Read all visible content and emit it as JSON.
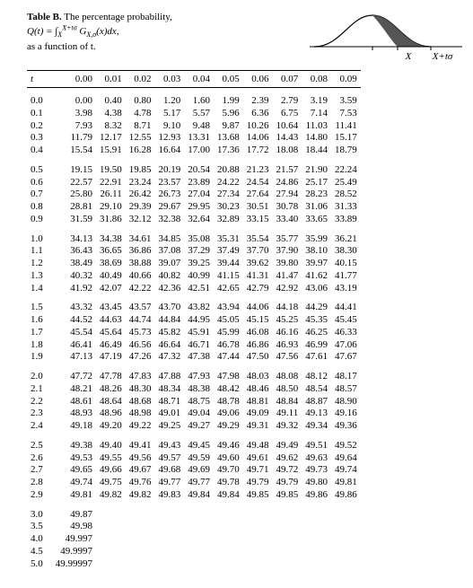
{
  "title_prefix": "Table B.",
  "title_rest": " The percentage probability,",
  "formula_line": "Q(t) = ∫ G (x)dx,",
  "formula_sub_lower": "X",
  "formula_sub_upper": "X+tσ",
  "formula_Gsub": "X,σ",
  "subtitle": "as a function of t.",
  "diagram": {
    "x_label": "X",
    "xt_label": "X+tσ",
    "curve_stroke": "#000000",
    "fill_color": "#555555",
    "axis_color": "#000000",
    "bg": "#ffffff"
  },
  "columns": [
    "t",
    "0.00",
    "0.01",
    "0.02",
    "0.03",
    "0.04",
    "0.05",
    "0.06",
    "0.07",
    "0.08",
    "0.09"
  ],
  "groups": [
    {
      "rows": [
        [
          "0.0",
          "0.00",
          "0.40",
          "0.80",
          "1.20",
          "1.60",
          "1.99",
          "2.39",
          "2.79",
          "3.19",
          "3.59"
        ],
        [
          "0.1",
          "3.98",
          "4.38",
          "4.78",
          "5.17",
          "5.57",
          "5.96",
          "6.36",
          "6.75",
          "7.14",
          "7.53"
        ],
        [
          "0.2",
          "7.93",
          "8.32",
          "8.71",
          "9.10",
          "9.48",
          "9.87",
          "10.26",
          "10.64",
          "11.03",
          "11.41"
        ],
        [
          "0.3",
          "11.79",
          "12.17",
          "12.55",
          "12.93",
          "13.31",
          "13.68",
          "14.06",
          "14.43",
          "14.80",
          "15.17"
        ],
        [
          "0.4",
          "15.54",
          "15.91",
          "16.28",
          "16.64",
          "17.00",
          "17.36",
          "17.72",
          "18.08",
          "18.44",
          "18.79"
        ]
      ]
    },
    {
      "rows": [
        [
          "0.5",
          "19.15",
          "19.50",
          "19.85",
          "20.19",
          "20.54",
          "20.88",
          "21.23",
          "21.57",
          "21.90",
          "22.24"
        ],
        [
          "0.6",
          "22.57",
          "22.91",
          "23.24",
          "23.57",
          "23.89",
          "24.22",
          "24.54",
          "24.86",
          "25.17",
          "25.49"
        ],
        [
          "0.7",
          "25.80",
          "26.11",
          "26.42",
          "26.73",
          "27.04",
          "27.34",
          "27.64",
          "27.94",
          "28.23",
          "28.52"
        ],
        [
          "0.8",
          "28.81",
          "29.10",
          "29.39",
          "29.67",
          "29.95",
          "30.23",
          "30.51",
          "30.78",
          "31.06",
          "31.33"
        ],
        [
          "0.9",
          "31.59",
          "31.86",
          "32.12",
          "32.38",
          "32.64",
          "32.89",
          "33.15",
          "33.40",
          "33.65",
          "33.89"
        ]
      ]
    },
    {
      "rows": [
        [
          "1.0",
          "34.13",
          "34.38",
          "34.61",
          "34.85",
          "35.08",
          "35.31",
          "35.54",
          "35.77",
          "35.99",
          "36.21"
        ],
        [
          "1.1",
          "36.43",
          "36.65",
          "36.86",
          "37.08",
          "37.29",
          "37.49",
          "37.70",
          "37.90",
          "38.10",
          "38.30"
        ],
        [
          "1.2",
          "38.49",
          "38.69",
          "38.88",
          "39.07",
          "39.25",
          "39.44",
          "39.62",
          "39.80",
          "39.97",
          "40.15"
        ],
        [
          "1.3",
          "40.32",
          "40.49",
          "40.66",
          "40.82",
          "40.99",
          "41.15",
          "41.31",
          "41.47",
          "41.62",
          "41.77"
        ],
        [
          "1.4",
          "41.92",
          "42.07",
          "42.22",
          "42.36",
          "42.51",
          "42.65",
          "42.79",
          "42.92",
          "43.06",
          "43.19"
        ]
      ]
    },
    {
      "rows": [
        [
          "1.5",
          "43.32",
          "43.45",
          "43.57",
          "43.70",
          "43.82",
          "43.94",
          "44.06",
          "44.18",
          "44.29",
          "44.41"
        ],
        [
          "1.6",
          "44.52",
          "44.63",
          "44.74",
          "44.84",
          "44.95",
          "45.05",
          "45.15",
          "45.25",
          "45.35",
          "45.45"
        ],
        [
          "1.7",
          "45.54",
          "45.64",
          "45.73",
          "45.82",
          "45.91",
          "45.99",
          "46.08",
          "46.16",
          "46.25",
          "46.33"
        ],
        [
          "1.8",
          "46.41",
          "46.49",
          "46.56",
          "46.64",
          "46.71",
          "46.78",
          "46.86",
          "46.93",
          "46.99",
          "47.06"
        ],
        [
          "1.9",
          "47.13",
          "47.19",
          "47.26",
          "47.32",
          "47.38",
          "47.44",
          "47.50",
          "47.56",
          "47.61",
          "47.67"
        ]
      ]
    },
    {
      "rows": [
        [
          "2.0",
          "47.72",
          "47.78",
          "47.83",
          "47.88",
          "47.93",
          "47.98",
          "48.03",
          "48.08",
          "48.12",
          "48.17"
        ],
        [
          "2.1",
          "48.21",
          "48.26",
          "48.30",
          "48.34",
          "48.38",
          "48.42",
          "48.46",
          "48.50",
          "48.54",
          "48.57"
        ],
        [
          "2.2",
          "48.61",
          "48.64",
          "48.68",
          "48.71",
          "48.75",
          "48.78",
          "48.81",
          "48.84",
          "48.87",
          "48.90"
        ],
        [
          "2.3",
          "48.93",
          "48.96",
          "48.98",
          "49.01",
          "49.04",
          "49.06",
          "49.09",
          "49.11",
          "49.13",
          "49.16"
        ],
        [
          "2.4",
          "49.18",
          "49.20",
          "49.22",
          "49.25",
          "49.27",
          "49.29",
          "49.31",
          "49.32",
          "49.34",
          "49.36"
        ]
      ]
    },
    {
      "rows": [
        [
          "2.5",
          "49.38",
          "49.40",
          "49.41",
          "49.43",
          "49.45",
          "49.46",
          "49.48",
          "49.49",
          "49.51",
          "49.52"
        ],
        [
          "2.6",
          "49.53",
          "49.55",
          "49.56",
          "49.57",
          "49.59",
          "49.60",
          "49.61",
          "49.62",
          "49.63",
          "49.64"
        ],
        [
          "2.7",
          "49.65",
          "49.66",
          "49.67",
          "49.68",
          "49.69",
          "49.70",
          "49.71",
          "49.72",
          "49.73",
          "49.74"
        ],
        [
          "2.8",
          "49.74",
          "49.75",
          "49.76",
          "49.77",
          "49.77",
          "49.78",
          "49.79",
          "49.79",
          "49.80",
          "49.81"
        ],
        [
          "2.9",
          "49.81",
          "49.82",
          "49.82",
          "49.83",
          "49.84",
          "49.84",
          "49.85",
          "49.85",
          "49.86",
          "49.86"
        ]
      ]
    },
    {
      "rows": [
        [
          "3.0",
          "49.87",
          "",
          "",
          "",
          "",
          "",
          "",
          "",
          "",
          ""
        ],
        [
          "3.5",
          "49.98",
          "",
          "",
          "",
          "",
          "",
          "",
          "",
          "",
          ""
        ],
        [
          "4.0",
          "49.997",
          "",
          "",
          "",
          "",
          "",
          "",
          "",
          "",
          ""
        ],
        [
          "4.5",
          "49.9997",
          "",
          "",
          "",
          "",
          "",
          "",
          "",
          "",
          ""
        ],
        [
          "5.0",
          "49.99997",
          "",
          "",
          "",
          "",
          "",
          "",
          "",
          "",
          ""
        ]
      ]
    }
  ]
}
